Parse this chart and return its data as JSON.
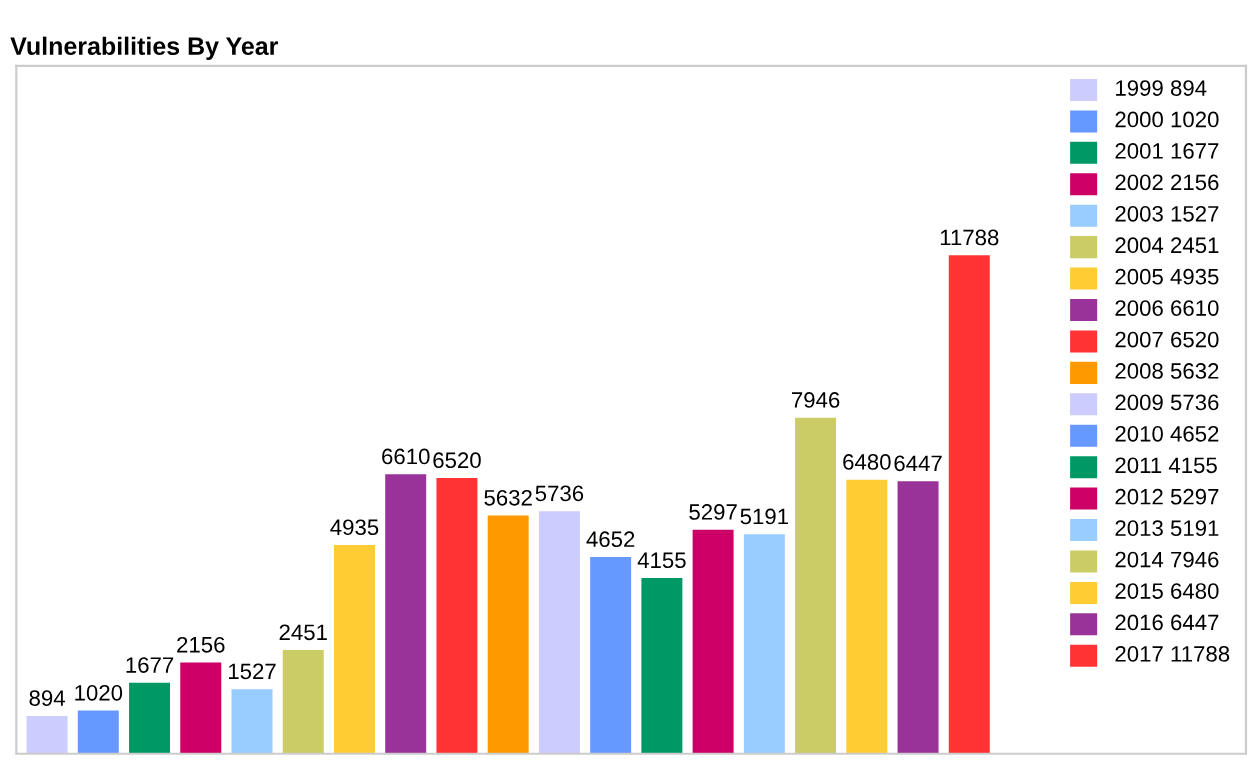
{
  "chart_data": {
    "type": "bar",
    "title": "Vulnerabilities By Year",
    "categories": [
      null,
      null,
      null,
      null,
      null,
      null,
      null,
      null,
      null,
      null,
      null,
      null,
      null,
      null,
      null,
      null,
      null,
      null,
      null
    ],
    "values": [
      894,
      1020,
      1677,
      2156,
      1527,
      2451,
      4935,
      6610,
      6520,
      5632,
      5736,
      4652,
      4155,
      5297,
      5191,
      7946,
      6480,
      6447,
      11788
    ],
    "colors": [
      "#ccccff",
      "#6699ff",
      "#009966",
      "#cc0066",
      "#99ccff",
      "#cccc66",
      "#ffcc33",
      "#993399",
      "#ff3333",
      "#ff9900",
      "#ccccff",
      "#6699ff",
      "#009966",
      "#cc0066",
      "#99ccff",
      "#cccc66",
      "#ffcc33",
      "#993399",
      "#ff3333"
    ],
    "data_labels": true,
    "tick_labels": false,
    "annotations": [
      "1999 894",
      "2000 1020",
      "2001 1677",
      "2002 2156",
      "2003 1527",
      "2004 2451",
      "2005 4935",
      "2006 6610",
      "2007 6520",
      "2008 5632",
      "2009 5736",
      "2010 4652",
      "2011 4155",
      "2012 5297",
      "2013 5191",
      "2014 7946",
      "2015 6480",
      "2016 6447",
      "2017 11788"
    ]
  }
}
